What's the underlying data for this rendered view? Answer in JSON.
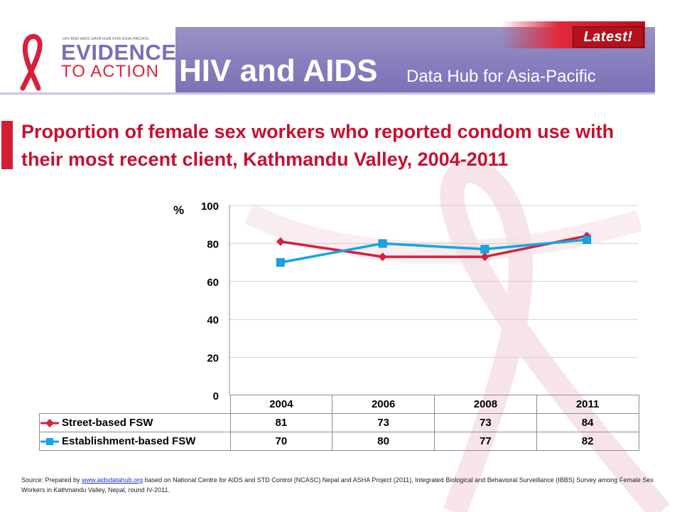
{
  "header": {
    "logo_small_text": "HIV AND AIDS DATA HUB FOR ASIA-PACIFIC",
    "logo_line1": "EVIDENCE",
    "logo_line2": "TO ACTION",
    "title": "HIV and AIDS",
    "subtitle": "Data Hub for Asia-Pacific",
    "latest_label": "Latest!"
  },
  "colors": {
    "header_band": "#857dbd",
    "accent_red": "#c8102e",
    "street_series": "#d6203f",
    "establishment_series": "#12a6e6"
  },
  "chart_data": {
    "type": "line",
    "title": "Proportion of female sex workers who reported condom use with their most recent client, Kathmandu Valley, 2004-2011",
    "ylabel": "%",
    "ylim": [
      0,
      100
    ],
    "yticks": [
      "0",
      "20",
      "40",
      "60",
      "80",
      "100"
    ],
    "categories": [
      "2004",
      "2006",
      "2008",
      "2011"
    ],
    "grid": true,
    "legend_placement": "data table below chart",
    "series": [
      {
        "name": "Street-based FSW",
        "marker": "diamond",
        "color": "#d6203f",
        "values": [
          81,
          73,
          73,
          84
        ]
      },
      {
        "name": "Establishment-based FSW",
        "marker": "square",
        "color": "#12a6e6",
        "values": [
          70,
          80,
          77,
          82
        ]
      }
    ]
  },
  "source": {
    "prefix": "Source: Prepared by",
    "link_text": "www.aidsdatahub.org",
    "suffix": "based on National Centre for AIDS and STD Control (NCASC) Nepal and ASHA Project (2011), Integrated Biological and Behavioral Surveillance (IBBS) Survey among Female Sex Workers in Kathmandu Valley, Nepal, round IV-2011."
  }
}
